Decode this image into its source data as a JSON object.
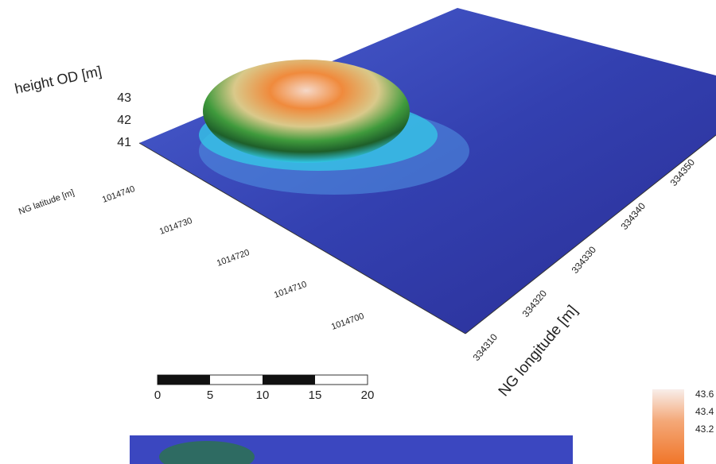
{
  "z_axis": {
    "label": "height OD [m]",
    "ticks": [
      "43",
      "42",
      "41"
    ]
  },
  "y_axis": {
    "label": "NG latitude [m]",
    "ticks": [
      "1014740",
      "1014730",
      "1014720",
      "1014710",
      "1014700"
    ]
  },
  "x_axis": {
    "label": "NG longitude [m]",
    "ticks": [
      "334310",
      "334320",
      "334330",
      "334340",
      "334350"
    ]
  },
  "scale_bar": {
    "ticks": [
      "0",
      "5",
      "10",
      "15",
      "20"
    ]
  },
  "colorbar": {
    "ticks": [
      "43.6",
      "43.4",
      "43.2"
    ]
  }
}
